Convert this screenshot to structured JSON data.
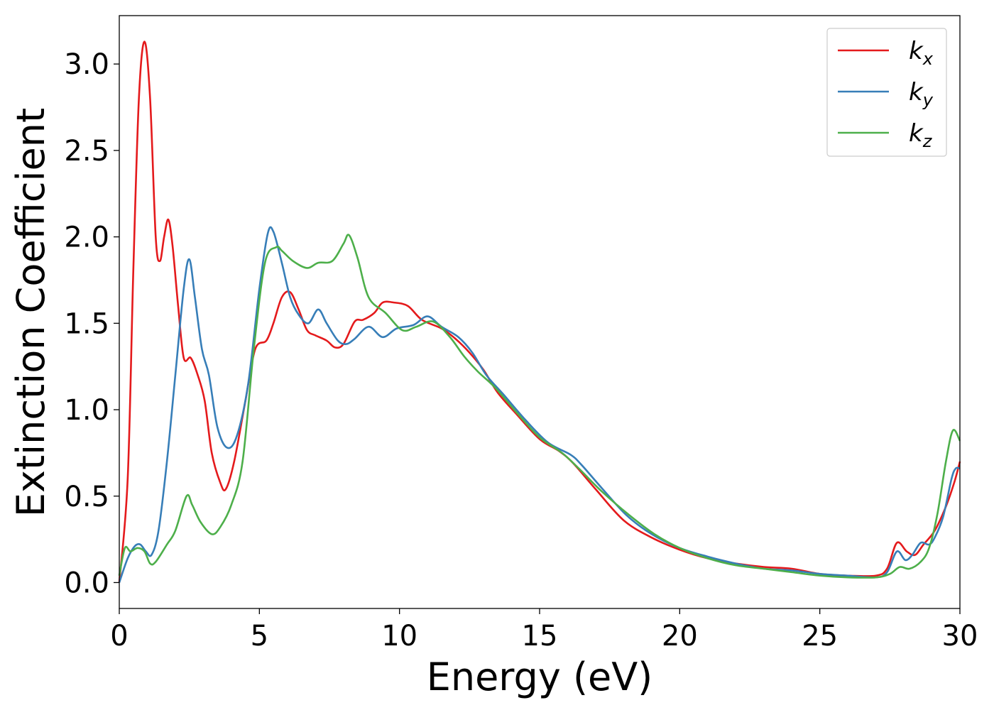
{
  "chart_data": {
    "type": "line",
    "title": "",
    "xlabel": "Energy (eV)",
    "ylabel": "Extinction Coefficient",
    "xlim": [
      0,
      30
    ],
    "ylim": [
      -0.15,
      3.28
    ],
    "xticks": [
      0,
      5,
      10,
      15,
      20,
      25,
      30
    ],
    "xtick_labels": [
      "0",
      "5",
      "10",
      "15",
      "20",
      "25",
      "30"
    ],
    "yticks": [
      0.0,
      0.5,
      1.0,
      1.5,
      2.0,
      2.5,
      3.0
    ],
    "ytick_labels": [
      "0.0",
      "0.5",
      "1.0",
      "1.5",
      "2.0",
      "2.5",
      "3.0"
    ],
    "grid": false,
    "legend_position": "top-right",
    "series": [
      {
        "name": "k",
        "subscript": "x",
        "color": "#e41a1c",
        "points": [
          [
            0,
            0.0
          ],
          [
            0.3,
            0.6
          ],
          [
            0.5,
            1.8
          ],
          [
            0.7,
            2.8
          ],
          [
            0.9,
            3.13
          ],
          [
            1.1,
            2.8
          ],
          [
            1.3,
            2.0
          ],
          [
            1.45,
            1.86
          ],
          [
            1.6,
            2.0
          ],
          [
            1.75,
            2.1
          ],
          [
            1.9,
            1.95
          ],
          [
            2.1,
            1.6
          ],
          [
            2.3,
            1.3
          ],
          [
            2.55,
            1.3
          ],
          [
            2.8,
            1.2
          ],
          [
            3.05,
            1.05
          ],
          [
            3.3,
            0.75
          ],
          [
            3.6,
            0.58
          ],
          [
            3.8,
            0.54
          ],
          [
            4.1,
            0.7
          ],
          [
            4.5,
            1.05
          ],
          [
            4.85,
            1.35
          ],
          [
            5.25,
            1.4
          ],
          [
            5.5,
            1.5
          ],
          [
            5.8,
            1.65
          ],
          [
            6.1,
            1.68
          ],
          [
            6.4,
            1.58
          ],
          [
            6.7,
            1.46
          ],
          [
            7.0,
            1.43
          ],
          [
            7.4,
            1.4
          ],
          [
            7.7,
            1.36
          ],
          [
            8.0,
            1.38
          ],
          [
            8.4,
            1.51
          ],
          [
            8.7,
            1.52
          ],
          [
            9.1,
            1.56
          ],
          [
            9.4,
            1.62
          ],
          [
            9.8,
            1.62
          ],
          [
            10.3,
            1.6
          ],
          [
            10.8,
            1.52
          ],
          [
            11.5,
            1.47
          ],
          [
            12.0,
            1.41
          ],
          [
            12.5,
            1.33
          ],
          [
            13.0,
            1.23
          ],
          [
            13.5,
            1.1
          ],
          [
            14.2,
            0.97
          ],
          [
            15.0,
            0.83
          ],
          [
            15.7,
            0.76
          ],
          [
            16.2,
            0.69
          ],
          [
            17.0,
            0.54
          ],
          [
            18.0,
            0.36
          ],
          [
            19.0,
            0.26
          ],
          [
            20.0,
            0.19
          ],
          [
            21.0,
            0.14
          ],
          [
            22.0,
            0.11
          ],
          [
            23.0,
            0.09
          ],
          [
            24.0,
            0.08
          ],
          [
            25.0,
            0.05
          ],
          [
            26.0,
            0.04
          ],
          [
            27.0,
            0.04
          ],
          [
            27.4,
            0.08
          ],
          [
            27.75,
            0.23
          ],
          [
            28.1,
            0.18
          ],
          [
            28.4,
            0.16
          ],
          [
            28.7,
            0.22
          ],
          [
            29.1,
            0.3
          ],
          [
            29.5,
            0.44
          ],
          [
            29.8,
            0.58
          ],
          [
            30.0,
            0.7
          ]
        ]
      },
      {
        "name": "k",
        "subscript": "y",
        "color": "#377eb8",
        "points": [
          [
            0,
            0.0
          ],
          [
            0.3,
            0.14
          ],
          [
            0.55,
            0.21
          ],
          [
            0.75,
            0.22
          ],
          [
            0.95,
            0.18
          ],
          [
            1.15,
            0.16
          ],
          [
            1.4,
            0.3
          ],
          [
            1.7,
            0.7
          ],
          [
            2.0,
            1.2
          ],
          [
            2.3,
            1.7
          ],
          [
            2.5,
            1.87
          ],
          [
            2.7,
            1.65
          ],
          [
            2.95,
            1.35
          ],
          [
            3.2,
            1.2
          ],
          [
            3.5,
            0.9
          ],
          [
            3.85,
            0.78
          ],
          [
            4.2,
            0.85
          ],
          [
            4.6,
            1.15
          ],
          [
            5.0,
            1.7
          ],
          [
            5.3,
            2.02
          ],
          [
            5.5,
            2.03
          ],
          [
            5.8,
            1.85
          ],
          [
            6.1,
            1.65
          ],
          [
            6.4,
            1.55
          ],
          [
            6.75,
            1.5
          ],
          [
            7.1,
            1.58
          ],
          [
            7.4,
            1.5
          ],
          [
            7.8,
            1.4
          ],
          [
            8.1,
            1.38
          ],
          [
            8.4,
            1.41
          ],
          [
            8.9,
            1.48
          ],
          [
            9.4,
            1.42
          ],
          [
            9.9,
            1.47
          ],
          [
            10.5,
            1.49
          ],
          [
            11.0,
            1.54
          ],
          [
            11.5,
            1.48
          ],
          [
            12.1,
            1.42
          ],
          [
            12.6,
            1.33
          ],
          [
            13.1,
            1.2
          ],
          [
            13.7,
            1.09
          ],
          [
            14.5,
            0.94
          ],
          [
            15.3,
            0.81
          ],
          [
            16.1,
            0.74
          ],
          [
            16.5,
            0.68
          ],
          [
            17.2,
            0.55
          ],
          [
            18.1,
            0.39
          ],
          [
            19.0,
            0.28
          ],
          [
            20.0,
            0.2
          ],
          [
            21.0,
            0.15
          ],
          [
            22.0,
            0.11
          ],
          [
            23.0,
            0.08
          ],
          [
            24.0,
            0.07
          ],
          [
            25.0,
            0.05
          ],
          [
            26.0,
            0.04
          ],
          [
            27.0,
            0.03
          ],
          [
            27.4,
            0.06
          ],
          [
            27.75,
            0.18
          ],
          [
            28.05,
            0.13
          ],
          [
            28.3,
            0.16
          ],
          [
            28.6,
            0.23
          ],
          [
            28.9,
            0.22
          ],
          [
            29.1,
            0.26
          ],
          [
            29.4,
            0.38
          ],
          [
            29.7,
            0.6
          ],
          [
            29.85,
            0.66
          ],
          [
            30.0,
            0.66
          ]
        ]
      },
      {
        "name": "k",
        "subscript": "z",
        "color": "#4daf4a",
        "points": [
          [
            0,
            0.04
          ],
          [
            0.2,
            0.2
          ],
          [
            0.4,
            0.18
          ],
          [
            0.65,
            0.2
          ],
          [
            0.9,
            0.18
          ],
          [
            1.1,
            0.11
          ],
          [
            1.3,
            0.12
          ],
          [
            1.7,
            0.22
          ],
          [
            2.0,
            0.3
          ],
          [
            2.4,
            0.5
          ],
          [
            2.6,
            0.45
          ],
          [
            2.9,
            0.35
          ],
          [
            3.3,
            0.28
          ],
          [
            3.6,
            0.32
          ],
          [
            4.0,
            0.45
          ],
          [
            4.4,
            0.7
          ],
          [
            4.8,
            1.35
          ],
          [
            5.2,
            1.85
          ],
          [
            5.6,
            1.94
          ],
          [
            5.8,
            1.92
          ],
          [
            6.2,
            1.86
          ],
          [
            6.7,
            1.82
          ],
          [
            7.1,
            1.85
          ],
          [
            7.6,
            1.86
          ],
          [
            8.0,
            1.96
          ],
          [
            8.2,
            2.01
          ],
          [
            8.5,
            1.88
          ],
          [
            8.9,
            1.65
          ],
          [
            9.5,
            1.56
          ],
          [
            10.1,
            1.46
          ],
          [
            10.6,
            1.48
          ],
          [
            11.2,
            1.51
          ],
          [
            11.8,
            1.42
          ],
          [
            12.3,
            1.31
          ],
          [
            12.8,
            1.22
          ],
          [
            13.4,
            1.13
          ],
          [
            14.2,
            0.98
          ],
          [
            15.0,
            0.84
          ],
          [
            15.8,
            0.75
          ],
          [
            16.4,
            0.66
          ],
          [
            17.2,
            0.53
          ],
          [
            18.2,
            0.39
          ],
          [
            19.1,
            0.28
          ],
          [
            20.0,
            0.2
          ],
          [
            21.0,
            0.14
          ],
          [
            22.0,
            0.1
          ],
          [
            23.0,
            0.08
          ],
          [
            24.0,
            0.06
          ],
          [
            25.0,
            0.04
          ],
          [
            26.0,
            0.03
          ],
          [
            27.0,
            0.03
          ],
          [
            27.5,
            0.05
          ],
          [
            27.85,
            0.09
          ],
          [
            28.2,
            0.08
          ],
          [
            28.6,
            0.12
          ],
          [
            28.9,
            0.2
          ],
          [
            29.2,
            0.4
          ],
          [
            29.5,
            0.7
          ],
          [
            29.75,
            0.88
          ],
          [
            30.0,
            0.82
          ]
        ]
      }
    ]
  }
}
